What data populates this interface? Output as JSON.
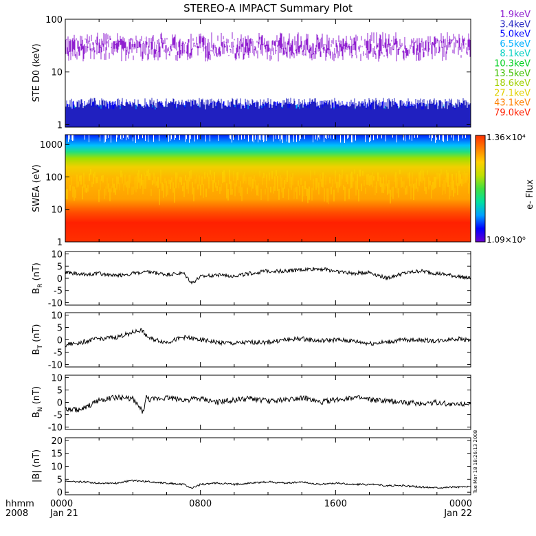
{
  "title": "STEREO-A IMPACT Summary Plot",
  "time_axis": {
    "label_line1": "hhmm",
    "label_line2": "2008",
    "ticks": [
      {
        "hhmm": "0000",
        "day": "Jan 21"
      },
      {
        "hhmm": "0800",
        "day": ""
      },
      {
        "hhmm": "1600",
        "day": ""
      },
      {
        "hhmm": "0000",
        "day": "Jan 22"
      }
    ]
  },
  "stamp": "Tue Mar 18 18:26:13 2008",
  "colorbar": {
    "label": "e- Flux",
    "max_label": "1.36×10⁴",
    "min_label": "1.09×10⁰",
    "colors": [
      "#6a00d0",
      "#0000ff",
      "#00a0ff",
      "#00e0a0",
      "#40e040",
      "#c0e000",
      "#ffd000",
      "#ff8000",
      "#ff3000"
    ]
  },
  "chart_data": [
    {
      "type": "line",
      "panel": "STE D0",
      "ylabel": "STE D0 (keV)",
      "yscale": "log",
      "ylim": [
        0.9,
        100
      ],
      "yticks": [
        "100",
        "10",
        "1"
      ],
      "legend_placement": "right",
      "series": [
        {
          "name": "1.9keV",
          "color": "#9020d0",
          "level": 30
        },
        {
          "name": "3.4keV",
          "color": "#2020c0",
          "level": 2.5
        },
        {
          "name": "5.0keV",
          "color": "#0000ff",
          "level": 2.2
        },
        {
          "name": "6.5keV",
          "color": "#00b0ff",
          "level": 1.9
        },
        {
          "name": "8.1keV",
          "color": "#00d0c0",
          "level": 1.8
        },
        {
          "name": "10.3keV",
          "color": "#00d020",
          "level": 1.7
        },
        {
          "name": "13.5keV",
          "color": "#40c000",
          "level": 1.6
        },
        {
          "name": "18.6keV",
          "color": "#a0d000",
          "level": 1.5
        },
        {
          "name": "27.1keV",
          "color": "#e0d000",
          "level": 1.4
        },
        {
          "name": "43.1keV",
          "color": "#ff8000",
          "level": 1.3
        },
        {
          "name": "79.0keV",
          "color": "#ff2000",
          "level": 1.2
        }
      ]
    },
    {
      "type": "heatmap",
      "panel": "SWEA",
      "ylabel": "SWEA (eV)",
      "yscale": "log",
      "ylim": [
        1,
        2000
      ],
      "yticks": [
        "1000",
        "100",
        "10",
        "1"
      ],
      "colorbar_label": "e- Flux"
    },
    {
      "type": "line",
      "panel": "BR",
      "ylabel": "B",
      "ylabel_sub": "R",
      "ylabel_unit": "(nT)",
      "ylim": [
        -11,
        11
      ],
      "yticks": [
        10,
        5,
        0,
        -5,
        -10
      ],
      "x_hours": [
        0,
        1,
        2,
        3,
        4,
        5,
        6,
        7,
        7.5,
        8,
        9,
        10,
        11,
        12,
        13,
        14,
        15,
        16,
        17,
        18,
        19,
        20,
        21,
        22,
        23,
        24
      ],
      "values": [
        2.5,
        1.5,
        2,
        1,
        2,
        2.5,
        1.5,
        2,
        -2,
        0.5,
        1.5,
        1,
        2,
        3,
        3,
        3.5,
        4,
        3,
        2,
        2.5,
        0,
        2,
        3,
        2,
        1,
        0
      ]
    },
    {
      "type": "line",
      "panel": "BT",
      "ylabel": "B",
      "ylabel_sub": "T",
      "ylabel_unit": "(nT)",
      "ylim": [
        -11,
        11
      ],
      "yticks": [
        10,
        5,
        0,
        -5,
        -10
      ],
      "x_hours": [
        0,
        1,
        2,
        3,
        4,
        4.5,
        5,
        6,
        7,
        8,
        9,
        10,
        11,
        12,
        13,
        14,
        15,
        16,
        17,
        18,
        19,
        20,
        21,
        22,
        23,
        24
      ],
      "values": [
        -2,
        -1,
        0.5,
        1,
        3,
        4,
        0.5,
        -1,
        1,
        0,
        -1,
        -1.5,
        -1,
        -1,
        0,
        0.5,
        -0.5,
        0,
        -0.5,
        -1.5,
        -1,
        0,
        0,
        -0.5,
        0.5,
        0
      ]
    },
    {
      "type": "line",
      "panel": "BN",
      "ylabel": "B",
      "ylabel_sub": "N",
      "ylabel_unit": "(nT)",
      "ylim": [
        -11,
        11
      ],
      "yticks": [
        10,
        5,
        0,
        -5,
        -10
      ],
      "x_hours": [
        0,
        1,
        2,
        3,
        4,
        4.6,
        4.8,
        5,
        6,
        7,
        8,
        9,
        10,
        11,
        12,
        13,
        14,
        15,
        16,
        17,
        18,
        19,
        20,
        21,
        22,
        23,
        24
      ],
      "values": [
        -3,
        -3,
        1,
        2,
        1.5,
        -4,
        2,
        1,
        2,
        1,
        1.5,
        0,
        1,
        1.5,
        0.5,
        1,
        2,
        0,
        1,
        2,
        1,
        0.5,
        0,
        -0.5,
        0,
        -1,
        0
      ]
    },
    {
      "type": "line",
      "panel": "B magnitude",
      "ylabel": "|B| (nT)",
      "ylim": [
        -1,
        21
      ],
      "yticks": [
        20,
        15,
        10,
        5,
        0
      ],
      "x_hours": [
        0,
        1,
        2,
        3,
        4,
        5,
        6,
        7,
        7.5,
        8,
        9,
        10,
        11,
        12,
        13,
        14,
        15,
        16,
        17,
        18,
        19,
        20,
        21,
        22,
        23,
        24
      ],
      "values": [
        4,
        4,
        3.5,
        3.5,
        4.5,
        4,
        3.5,
        3,
        1.5,
        3,
        3.5,
        3,
        3.5,
        4,
        3.5,
        4,
        3,
        3.5,
        3,
        3,
        2.5,
        2.5,
        2,
        1.8,
        2,
        2
      ]
    }
  ]
}
